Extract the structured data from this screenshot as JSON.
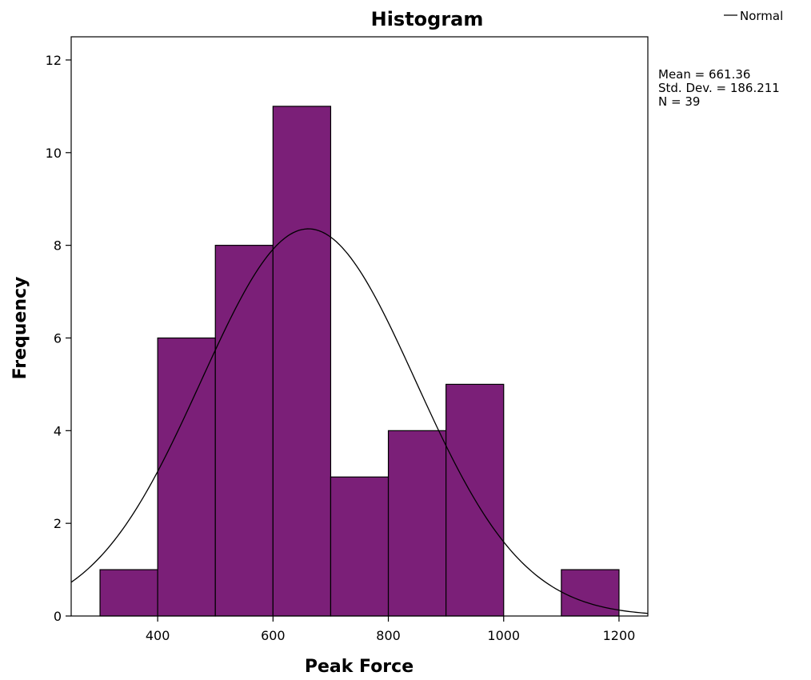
{
  "chart_data": {
    "type": "bar",
    "title": "Histogram",
    "xlabel": "Peak Force",
    "ylabel": "Frequency",
    "bins": [
      {
        "start": 300,
        "end": 400,
        "value": 1
      },
      {
        "start": 400,
        "end": 500,
        "value": 6
      },
      {
        "start": 500,
        "end": 600,
        "value": 8
      },
      {
        "start": 600,
        "end": 700,
        "value": 11
      },
      {
        "start": 700,
        "end": 800,
        "value": 3
      },
      {
        "start": 800,
        "end": 900,
        "value": 4
      },
      {
        "start": 900,
        "end": 1000,
        "value": 5
      },
      {
        "start": 1000,
        "end": 1100,
        "value": 0
      },
      {
        "start": 1100,
        "end": 1200,
        "value": 1
      }
    ],
    "xlim": [
      250,
      1250
    ],
    "ylim": [
      0,
      12.5
    ],
    "x_ticks": [
      400,
      600,
      800,
      1000,
      1200
    ],
    "y_ticks": [
      0,
      2,
      4,
      6,
      8,
      10,
      12
    ],
    "bar_color": "#7b1f78",
    "grid": false,
    "normal_curve": {
      "mean": 661.36,
      "sd": 186.211,
      "n": 39,
      "bin_width": 100
    },
    "legend": {
      "position": "top-right",
      "entries": [
        "Normal"
      ]
    },
    "stats": {
      "mean": "Mean = 661.36",
      "std_dev": "Std. Dev. = 186.211",
      "n": "N = 39"
    }
  }
}
